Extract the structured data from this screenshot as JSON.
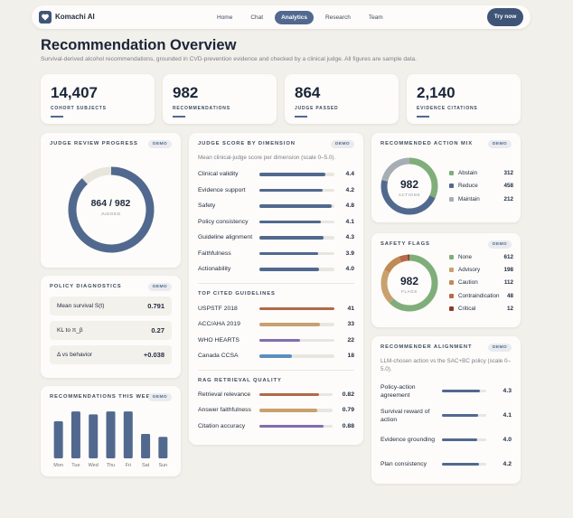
{
  "nav": {
    "brand": "Komachi AI",
    "links": [
      "Home",
      "Chat",
      "Analytics",
      "Research",
      "Team"
    ],
    "active": 2,
    "cta": "Try now"
  },
  "header": {
    "title": "Recommendation Overview",
    "subtitle": "Survival-derived alcohol recommendations, grounded in CVD-prevention evidence and checked by a clinical judge. All figures are sample data."
  },
  "kpis": [
    {
      "value": "14,407",
      "label": "COHORT SUBJECTS"
    },
    {
      "value": "982",
      "label": "RECOMMENDATIONS"
    },
    {
      "value": "864",
      "label": "JUDGE PASSED"
    },
    {
      "value": "2,140",
      "label": "EVIDENCE CITATIONS"
    }
  ],
  "judge_progress": {
    "title": "JUDGE REVIEW PROGRESS",
    "badge": "DEMO",
    "passed": 864,
    "total": 982,
    "center_label": "864 / 982",
    "caption": "JUDGED"
  },
  "judge_scores": {
    "title": "JUDGE SCORE BY DIMENSION",
    "badge": "DEMO",
    "subtitle": "Mean clinical-judge score per dimension (scale 0–5.0).",
    "xlim": [
      0,
      5
    ],
    "categories": [
      "Clinical validity",
      "Evidence support",
      "Safety",
      "Policy consistency",
      "Guideline alignment",
      "Faithfulness",
      "Actionability"
    ],
    "values": [
      4.4,
      4.2,
      4.8,
      4.1,
      4.3,
      3.9,
      4.0
    ],
    "value_labels": [
      "4.4",
      "4.2",
      "4.8",
      "4.1",
      "4.3",
      "3.9",
      "4.0"
    ],
    "color": "#52698f"
  },
  "guidelines": {
    "title": "TOP CITED GUIDELINES",
    "categories": [
      "USPSTF 2018",
      "ACC/AHA 2019",
      "WHO HEARTS",
      "Canada CCSA"
    ],
    "values": [
      41,
      33,
      22,
      18
    ],
    "colors": [
      "#b06a4a",
      "#c9a06e",
      "#7f6fae",
      "#5b8fc0"
    ]
  },
  "rag": {
    "title": "RAG RETRIEVAL QUALITY",
    "xlim": [
      0,
      1
    ],
    "categories": [
      "Retrieval relevance",
      "Answer faithfulness",
      "Citation accuracy"
    ],
    "values": [
      0.82,
      0.79,
      0.88
    ],
    "colors": [
      "#b06a4a",
      "#c9a06e",
      "#7f6fae"
    ]
  },
  "action_mix": {
    "title": "RECOMMENDED ACTION MIX",
    "badge": "DEMO",
    "total": 982,
    "caption": "ACTIONS",
    "categories": [
      "Abstain",
      "Reduce",
      "Maintain"
    ],
    "values": [
      312,
      458,
      212
    ],
    "colors": [
      "#7fae7a",
      "#52698f",
      "#a7adb5"
    ]
  },
  "safety_flags": {
    "title": "SAFETY FLAGS",
    "badge": "DEMO",
    "total": 982,
    "caption": "FLAGS",
    "categories": [
      "None",
      "Advisory",
      "Caution",
      "Contraindication",
      "Critical"
    ],
    "values": [
      612,
      198,
      112,
      48,
      12
    ],
    "colors": [
      "#7fae7a",
      "#c9a06e",
      "#c08a55",
      "#b8694a",
      "#8e3b2e"
    ]
  },
  "policy": {
    "title": "POLICY DIAGNOSTICS",
    "badge": "DEMO",
    "rows": [
      [
        "Mean survival S(t)",
        "0.791"
      ],
      [
        "KL to π_β",
        "0.27"
      ],
      [
        "Δ vs behavior",
        "+0.038"
      ]
    ]
  },
  "weekly": {
    "title": "RECOMMENDATIONS THIS WEEK",
    "badge": "DEMO",
    "categories": [
      "Mon",
      "Tue",
      "Wed",
      "Thu",
      "Fri",
      "Sat",
      "Sun"
    ],
    "values": [
      38,
      48,
      45,
      48,
      48,
      25,
      22
    ],
    "ylim": [
      0,
      50
    ],
    "color": "#52698f"
  },
  "alignment": {
    "title": "RECOMMENDER ALIGNMENT",
    "badge": "DEMO",
    "subtitle": "LLM-chosen action vs the SAC+BC policy (scale 0–5.0).",
    "xlim": [
      0,
      5
    ],
    "categories": [
      "Policy-action agreement",
      "Survival reward of action",
      "Evidence grounding",
      "Plan consistency"
    ],
    "values": [
      4.3,
      4.1,
      4.0,
      4.2
    ],
    "value_labels": [
      "4.3",
      "4.1",
      "4.0",
      "4.2"
    ],
    "color": "#52698f"
  }
}
